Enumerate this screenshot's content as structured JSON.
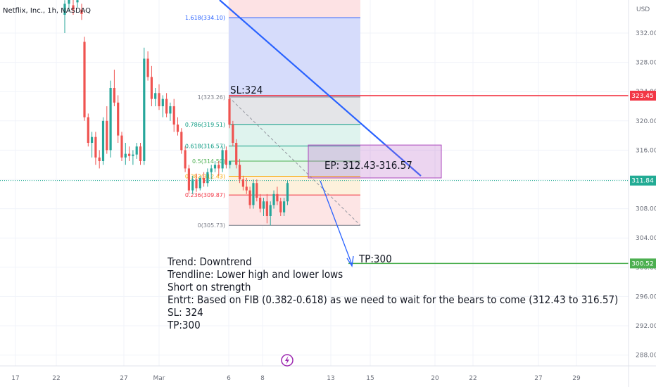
{
  "header": {
    "symbol": "Netflix, Inc., 1h, NASDAQ"
  },
  "chart_data": {
    "type": "candlestick",
    "currency": "USD",
    "x_ticks": [
      "17",
      "22",
      "27",
      "Mar",
      "6",
      "8",
      "13",
      "15",
      "20",
      "22",
      "27",
      "29"
    ],
    "y_ticks": [
      "332.00",
      "328.00",
      "324.00",
      "320.00",
      "316.00",
      "312.00",
      "308.00",
      "304.00",
      "300.00",
      "296.00",
      "292.00",
      "288.00"
    ],
    "ylim": [
      287,
      337
    ],
    "price_labels": [
      {
        "value": 323.45,
        "text": "323.45",
        "color": "#f23645"
      },
      {
        "value": 311.84,
        "text": "311.84",
        "color": "#22ab94"
      },
      {
        "value": 300.52,
        "text": "300.52",
        "color": "#4caf50"
      }
    ],
    "fib_levels": [
      {
        "ratio": "1.618",
        "value": 334.1,
        "label": "1.618(334.10)",
        "color": "#2962ff"
      },
      {
        "ratio": "1",
        "value": 323.26,
        "label": "1(323.26)",
        "color": "#787b86"
      },
      {
        "ratio": "0.786",
        "value": 319.51,
        "label": "0.786(319.51)",
        "color": "#089981"
      },
      {
        "ratio": "0.618",
        "value": 316.57,
        "label": "0.618(316.57)",
        "color": "#089981"
      },
      {
        "ratio": "0.5",
        "value": 314.5,
        "label": "0.5(314.50)",
        "color": "#4caf50"
      },
      {
        "ratio": "0.382",
        "value": 312.43,
        "label": "0.382(312.43)",
        "color": "#f7a600"
      },
      {
        "ratio": "0.236",
        "value": 309.87,
        "label": "0.236(309.87)",
        "color": "#f23645"
      },
      {
        "ratio": "0",
        "value": 305.73,
        "label": "0(305.73)",
        "color": "#787b86"
      }
    ],
    "candles": [
      {
        "o": 334.5,
        "h": 336.5,
        "l": 332.0,
        "c": 336.0
      },
      {
        "o": 336.0,
        "h": 337.0,
        "l": 335.0,
        "c": 336.6
      },
      {
        "o": 335.8,
        "h": 336.8,
        "l": 334.5,
        "c": 335.2
      },
      {
        "o": 336.2,
        "h": 337.0,
        "l": 335.5,
        "c": 336.5
      },
      {
        "o": 335.2,
        "h": 336.0,
        "l": 333.8,
        "c": 334.6
      },
      {
        "o": 330.8,
        "h": 331.5,
        "l": 320.0,
        "c": 320.5
      },
      {
        "o": 320.5,
        "h": 321.0,
        "l": 316.5,
        "c": 317.0
      },
      {
        "o": 317.0,
        "h": 318.5,
        "l": 315.0,
        "c": 317.8
      },
      {
        "o": 317.8,
        "h": 318.5,
        "l": 314.0,
        "c": 315.0
      },
      {
        "o": 315.0,
        "h": 316.0,
        "l": 313.5,
        "c": 314.5
      },
      {
        "o": 314.5,
        "h": 320.5,
        "l": 314.0,
        "c": 320.0
      },
      {
        "o": 320.0,
        "h": 322.0,
        "l": 315.5,
        "c": 316.0
      },
      {
        "o": 316.0,
        "h": 325.5,
        "l": 315.0,
        "c": 324.5
      },
      {
        "o": 324.5,
        "h": 327.0,
        "l": 322.0,
        "c": 322.5
      },
      {
        "o": 322.5,
        "h": 323.5,
        "l": 317.0,
        "c": 318.0
      },
      {
        "o": 318.0,
        "h": 318.5,
        "l": 314.5,
        "c": 315.0
      },
      {
        "o": 315.0,
        "h": 317.0,
        "l": 314.0,
        "c": 315.5
      },
      {
        "o": 315.5,
        "h": 316.5,
        "l": 314.5,
        "c": 315.2
      },
      {
        "o": 315.2,
        "h": 316.0,
        "l": 314.0,
        "c": 315.4
      },
      {
        "o": 315.4,
        "h": 317.0,
        "l": 314.8,
        "c": 316.5
      },
      {
        "o": 316.5,
        "h": 317.0,
        "l": 314.0,
        "c": 314.5
      },
      {
        "o": 314.5,
        "h": 330.0,
        "l": 314.0,
        "c": 328.5
      },
      {
        "o": 328.5,
        "h": 329.5,
        "l": 325.5,
        "c": 326.0
      },
      {
        "o": 326.0,
        "h": 327.5,
        "l": 322.0,
        "c": 323.0
      },
      {
        "o": 323.0,
        "h": 324.5,
        "l": 322.0,
        "c": 323.8
      },
      {
        "o": 323.8,
        "h": 325.0,
        "l": 321.5,
        "c": 322.0
      },
      {
        "o": 322.0,
        "h": 323.5,
        "l": 320.5,
        "c": 323.0
      },
      {
        "o": 323.0,
        "h": 323.8,
        "l": 320.5,
        "c": 321.0
      },
      {
        "o": 321.0,
        "h": 322.5,
        "l": 320.0,
        "c": 322.0
      },
      {
        "o": 322.0,
        "h": 323.0,
        "l": 318.5,
        "c": 319.5
      },
      {
        "o": 319.5,
        "h": 320.5,
        "l": 318.0,
        "c": 318.5
      },
      {
        "o": 318.5,
        "h": 319.0,
        "l": 315.5,
        "c": 316.0
      },
      {
        "o": 316.0,
        "h": 316.5,
        "l": 313.0,
        "c": 313.5
      },
      {
        "o": 313.5,
        "h": 314.0,
        "l": 310.0,
        "c": 310.5
      },
      {
        "o": 310.5,
        "h": 312.5,
        "l": 310.0,
        "c": 312.0
      },
      {
        "o": 312.0,
        "h": 312.8,
        "l": 310.3,
        "c": 310.8
      },
      {
        "o": 310.8,
        "h": 312.5,
        "l": 310.5,
        "c": 312.2
      },
      {
        "o": 312.2,
        "h": 313.0,
        "l": 311.0,
        "c": 311.5
      },
      {
        "o": 311.5,
        "h": 313.5,
        "l": 311.0,
        "c": 313.0
      },
      {
        "o": 313.0,
        "h": 314.0,
        "l": 312.0,
        "c": 313.5
      },
      {
        "o": 313.5,
        "h": 314.5,
        "l": 313.0,
        "c": 314.0
      },
      {
        "o": 314.0,
        "h": 314.5,
        "l": 312.5,
        "c": 313.5
      },
      {
        "o": 313.5,
        "h": 316.5,
        "l": 313.0,
        "c": 316.0
      },
      {
        "o": 316.0,
        "h": 316.5,
        "l": 313.5,
        "c": 314.0
      },
      {
        "o": 314.0,
        "h": 314.5,
        "l": 313.5,
        "c": 314.5
      },
      {
        "o": 323.0,
        "h": 323.5,
        "l": 319.0,
        "c": 319.5
      },
      {
        "o": 319.5,
        "h": 320.0,
        "l": 316.5,
        "c": 317.0
      },
      {
        "o": 317.0,
        "h": 317.5,
        "l": 313.5,
        "c": 314.0
      },
      {
        "o": 314.0,
        "h": 314.8,
        "l": 311.5,
        "c": 312.0
      },
      {
        "o": 312.0,
        "h": 312.5,
        "l": 310.5,
        "c": 311.0
      },
      {
        "o": 311.0,
        "h": 312.2,
        "l": 310.0,
        "c": 310.5
      },
      {
        "o": 310.5,
        "h": 311.0,
        "l": 308.0,
        "c": 308.5
      },
      {
        "o": 308.5,
        "h": 312.0,
        "l": 308.0,
        "c": 311.5
      },
      {
        "o": 311.5,
        "h": 312.0,
        "l": 309.0,
        "c": 309.5
      },
      {
        "o": 309.5,
        "h": 310.0,
        "l": 307.5,
        "c": 308.0
      },
      {
        "o": 308.0,
        "h": 309.5,
        "l": 307.0,
        "c": 309.0
      },
      {
        "o": 309.0,
        "h": 310.0,
        "l": 306.0,
        "c": 307.0
      },
      {
        "o": 307.0,
        "h": 309.0,
        "l": 305.7,
        "c": 308.5
      },
      {
        "o": 308.5,
        "h": 310.5,
        "l": 308.0,
        "c": 310.0
      },
      {
        "o": 310.0,
        "h": 311.0,
        "l": 308.5,
        "c": 309.0
      },
      {
        "o": 309.0,
        "h": 309.5,
        "l": 307.0,
        "c": 307.5
      },
      {
        "o": 307.5,
        "h": 309.5,
        "l": 307.0,
        "c": 309.0
      },
      {
        "o": 309.0,
        "h": 311.8,
        "l": 308.5,
        "c": 311.5
      }
    ],
    "annotations": {
      "sl": "SL:324",
      "ep": "EP: 312.43-316.57",
      "tp": "TP:300",
      "notes": [
        "Trend: Downtrend",
        "Trendline: Lower high and lower lows",
        "Short on strength",
        "Entrt: Based on FIB (0.382-0.618) as we need to wait for the bears to come (312.43 to 316.57)",
        "SL: 324",
        "TP:300"
      ]
    },
    "colors": {
      "up": "#26a69a",
      "down": "#ef5350",
      "trendline": "#2962ff",
      "sl_line": "#e53935",
      "tp_line": "#43a047"
    }
  }
}
